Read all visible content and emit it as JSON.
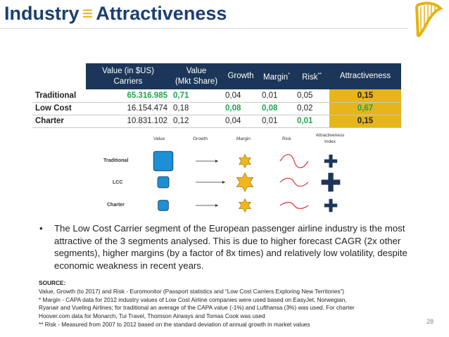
{
  "slide": {
    "title_left": "Industry",
    "title_sep": "≡",
    "title_right": "Attractiveness",
    "logo": "harp-icon",
    "page_number": "28"
  },
  "table": {
    "headers": [
      {
        "l1": "Value (in $US)",
        "l2": "Carriers"
      },
      {
        "l1": "Value",
        "l2": "(Mkt Share)"
      },
      {
        "l1": "Growth",
        "sup": ""
      },
      {
        "l1": "Margin",
        "sup": "*"
      },
      {
        "l1": "Risk",
        "sup": "**"
      },
      {
        "l1": "Attractiveness"
      }
    ],
    "rows": [
      {
        "label": "Traditional",
        "value": "65.316.985",
        "share": "0,71",
        "growth": "0,04",
        "margin": "0,01",
        "risk": "0,05",
        "att": "0,15"
      },
      {
        "label": "Low Cost",
        "value": "16.154.474",
        "share": "0,18",
        "growth": "0,08",
        "margin": "0,08",
        "risk": "0,02",
        "att": "0,67"
      },
      {
        "label": "Charter",
        "value": "10.831.102",
        "share": "0,12",
        "growth": "0,04",
        "margin": "0,01",
        "risk": "0,01",
        "att": "0,15"
      }
    ],
    "highlight_color": "#21a34a",
    "attractiveness_fill": "#e6b519",
    "header_fill": "#1b3658"
  },
  "legend": {
    "value": "Value",
    "growth": "Growth",
    "margin": "Margin",
    "risk": "Risk",
    "att_l1": "Attractiveness",
    "att_l2": "Index"
  },
  "visual_rows": [
    {
      "label": "Traditional",
      "value_level": 0.71,
      "growth_level": 0.04,
      "margin_level": 0.01,
      "risk_level": 0.05,
      "att_level": 0.15
    },
    {
      "label": "LCC",
      "value_level": 0.18,
      "growth_level": 0.08,
      "margin_level": 0.08,
      "risk_level": 0.02,
      "att_level": 0.67
    },
    {
      "label": "Charter",
      "value_level": 0.12,
      "growth_level": 0.04,
      "margin_level": 0.01,
      "risk_level": 0.01,
      "att_level": 0.15
    }
  ],
  "icons": {
    "value": "rounded-square-icon",
    "growth": "arrow-icon",
    "margin": "star-icon",
    "risk": "sine-wave-icon",
    "attractiveness": "plus-icon"
  },
  "colors": {
    "value_fill": "#1e8fd6",
    "star_fill": "#f2b61a",
    "risk_wave": "#e03030",
    "plus_fill": "#1b3658",
    "title": "#1b3f73",
    "title_sep": "#e5b214"
  },
  "bullet": "The Low Cost Carrier segment of the European passenger airline industry is the most attractive of the 3 segments analysed. This is due to higher forecast CAGR (2x other segments), higher margins (by a factor of 8x times) and relatively low volatility, despite economic weakness in recent years.",
  "source": {
    "heading": "SOURCE:",
    "lines": [
      "Value, Growth (to 2017) and Risk - Euromonitor (Passport statistics and “Low Cost Carriers Exploring New Territories”)",
      "* Margin - CAPA data for 2012 industry values of Low Cost Airline companies were used based on EasyJet, Norwegian,",
      "Ryanair and Vueling Airlines; for traditional an average of the CAPA value (-1%) and Lufthansa (3%) was used. For charter",
      "Hoover.com data for Monarch, Tui Travel, Thomson Airways and Tomas Cook was used",
      "** Risk - Measured from 2007 to 2012 based on the standard deviation of annual growth in market values"
    ]
  }
}
